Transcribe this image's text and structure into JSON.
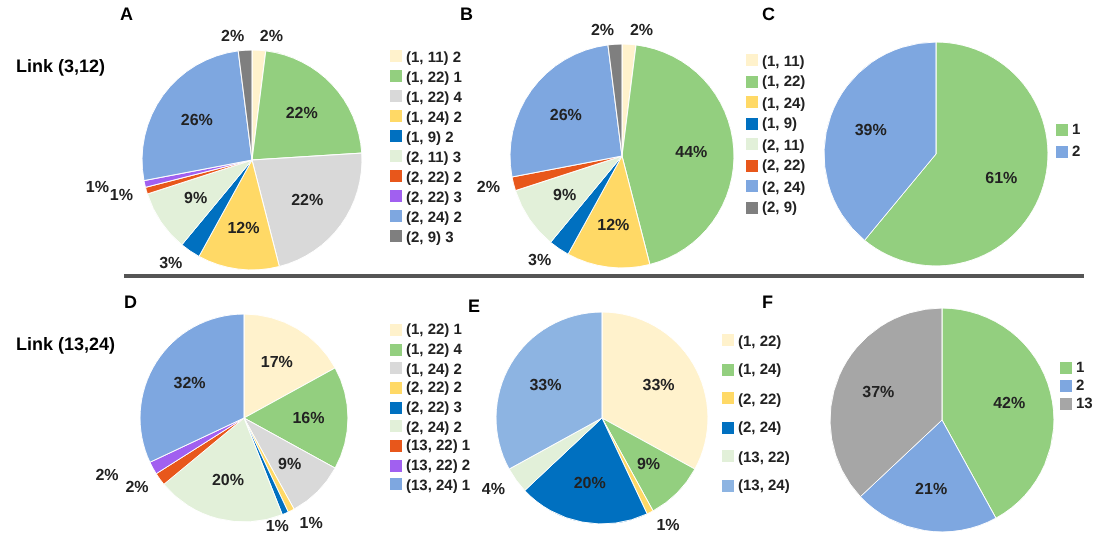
{
  "chart_data": [
    {
      "type": "pie",
      "title": "A",
      "annotations": [
        "Link (3,12)"
      ],
      "legend": "right",
      "categories": [
        "(1, 11) 2",
        "(1, 22) 1",
        "(1, 22) 4",
        "(1, 24) 2",
        "(1, 9) 2",
        "(2, 11) 3",
        "(2, 22) 2",
        "(2, 22) 3",
        "(2, 24) 2",
        "(2, 9) 3"
      ],
      "values": [
        2,
        22,
        22,
        12,
        3,
        9,
        1,
        1,
        26,
        2
      ],
      "value_labels": [
        "2%",
        "22%",
        "22%",
        "12%",
        "3%",
        "9%",
        "1%",
        "1%",
        "26%",
        "2%"
      ],
      "colors": [
        "#fff2cc",
        "#93cf7f",
        "#d9d9d9",
        "#ffd966",
        "#0070c0",
        "#e2f0d9",
        "#e8571b",
        "#a160f0",
        "#7ea7e0",
        "#7f7f7f"
      ]
    },
    {
      "type": "pie",
      "title": "B",
      "legend": "right",
      "categories": [
        "(1, 11)",
        "(1, 22)",
        "(1, 24)",
        "(1, 9)",
        "(2, 11)",
        "(2, 22)",
        "(2, 24)",
        "(2, 9)"
      ],
      "values": [
        2,
        44,
        12,
        3,
        9,
        2,
        26,
        2
      ],
      "value_labels": [
        "2%",
        "44%",
        "12%",
        "3%",
        "9%",
        "2%",
        "26%",
        "2%"
      ],
      "colors": [
        "#fff2cc",
        "#93cf7f",
        "#ffd966",
        "#0070c0",
        "#e2f0d9",
        "#e8571b",
        "#7ea7e0",
        "#7f7f7f"
      ]
    },
    {
      "type": "pie",
      "title": "C",
      "legend": "right",
      "categories": [
        "1",
        "2"
      ],
      "values": [
        61,
        39
      ],
      "value_labels": [
        "61%",
        "39%"
      ],
      "colors": [
        "#93cf7f",
        "#7ea7e0"
      ]
    },
    {
      "type": "pie",
      "title": "D",
      "annotations": [
        "Link (13,24)"
      ],
      "legend": "right",
      "categories": [
        "(1, 22) 1",
        "(1, 22) 4",
        "(1, 24) 2",
        "(2, 22) 2",
        "(2, 22) 3",
        "(2, 24) 2",
        "(13, 22) 1",
        "(13, 22) 2",
        "(13, 24) 1"
      ],
      "values": [
        17,
        16,
        9,
        1,
        1,
        20,
        2,
        2,
        32
      ],
      "value_labels": [
        "17%",
        "16%",
        "9%",
        "1%",
        "1%",
        "20%",
        "2%",
        "2%",
        "32%"
      ],
      "colors": [
        "#fff2cc",
        "#93cf7f",
        "#d9d9d9",
        "#ffd966",
        "#0070c0",
        "#e2f0d9",
        "#e8571b",
        "#a160f0",
        "#7ea7e0"
      ]
    },
    {
      "type": "pie",
      "title": "E",
      "legend": "right",
      "categories": [
        "(1, 22)",
        "(1, 24)",
        "(2, 22)",
        "(2, 24)",
        "(13, 22)",
        "(13, 24)"
      ],
      "values": [
        33,
        9,
        1,
        20,
        4,
        33
      ],
      "value_labels": [
        "33%",
        "9%",
        "1%",
        "20%",
        "4%",
        "33%"
      ],
      "colors": [
        "#fff2cc",
        "#93cf7f",
        "#ffd966",
        "#0070c0",
        "#e2f0d9",
        "#8db4e2"
      ]
    },
    {
      "type": "pie",
      "title": "F",
      "legend": "right",
      "categories": [
        "1",
        "2",
        "13"
      ],
      "values": [
        42,
        21,
        37
      ],
      "value_labels": [
        "42%",
        "21%",
        "37%"
      ],
      "colors": [
        "#93cf7f",
        "#7ea7e0",
        "#a6a6a6"
      ]
    }
  ]
}
